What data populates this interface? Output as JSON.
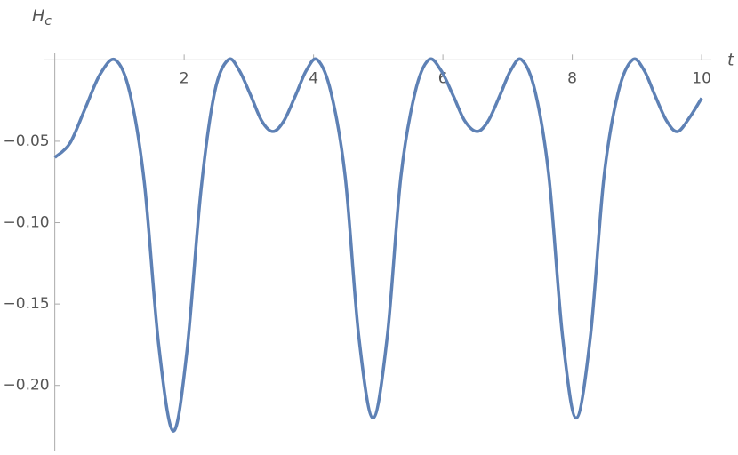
{
  "chart_data": {
    "type": "line",
    "xlabel": "t",
    "ylabel": {
      "text": "H",
      "subscript": "c"
    },
    "xlim": [
      -0.16,
      10.15
    ],
    "ylim": [
      -0.24,
      0.004
    ],
    "xticks": [
      2,
      4,
      6,
      8,
      10
    ],
    "yticks": [
      {
        "value": -0.05,
        "label": "−0.05"
      },
      {
        "value": -0.1,
        "label": "−0.10"
      },
      {
        "value": -0.15,
        "label": "−0.15"
      },
      {
        "value": -0.2,
        "label": "−0.20"
      }
    ],
    "series": [
      {
        "color": "#5e81b5",
        "x": [
          0,
          0.234,
          0.468,
          0.701,
          0.935,
          1.159,
          1.383,
          1.606,
          1.83,
          2.04,
          2.26,
          2.47,
          2.68,
          2.85,
          3.03,
          3.2,
          3.37,
          3.54,
          3.72,
          3.89,
          4.06,
          4.27,
          4.49,
          4.7,
          4.92,
          5.14,
          5.35,
          5.57,
          5.78,
          5.97,
          6.16,
          6.34,
          6.53,
          6.7,
          6.88,
          7.05,
          7.22,
          7.43,
          7.64,
          7.85,
          8.06,
          8.28,
          8.49,
          8.71,
          8.93,
          9.11,
          9.28,
          9.46,
          9.63,
          9.82,
          10
        ],
        "values": [
          -0.06,
          -0.0512,
          -0.03,
          -0.0088,
          0,
          -0.02,
          -0.075,
          -0.175,
          -0.228,
          -0.18,
          -0.08,
          -0.02,
          0,
          -0.0064,
          -0.022,
          -0.0376,
          -0.044,
          -0.0376,
          -0.022,
          -0.0064,
          0,
          -0.02,
          -0.072,
          -0.17,
          -0.22,
          -0.17,
          -0.072,
          -0.02,
          0,
          -0.0064,
          -0.022,
          -0.0376,
          -0.044,
          -0.0376,
          -0.022,
          -0.0064,
          0,
          -0.02,
          -0.072,
          -0.17,
          -0.22,
          -0.17,
          -0.072,
          -0.02,
          0,
          -0.0064,
          -0.022,
          -0.0376,
          -0.044,
          -0.035,
          -0.0235
        ]
      }
    ]
  }
}
